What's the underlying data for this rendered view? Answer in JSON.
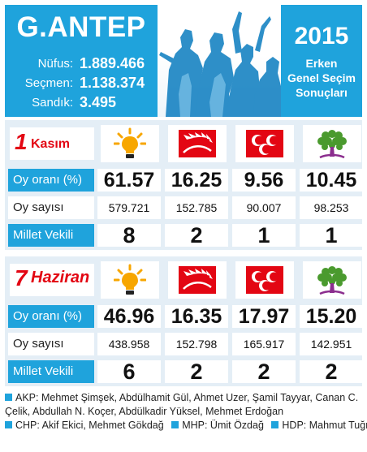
{
  "header": {
    "city": "G.ANTEP",
    "stats": [
      {
        "label": "Nüfus:",
        "value": "1.889.466"
      },
      {
        "label": "Seçmen:",
        "value": "1.138.374"
      },
      {
        "label": "Sandık:",
        "value": "3.495"
      }
    ],
    "year": "2015",
    "election_lines": [
      "Erken",
      "Genel Seçim",
      "Sonuçları"
    ]
  },
  "row_labels": {
    "vote_rate": "Oy oranı (%)",
    "vote_count": "Oy sayısı",
    "mp": "Millet Vekili"
  },
  "parties": [
    {
      "icon": "akp-bulb-icon",
      "color": "#f7a600"
    },
    {
      "icon": "chp-arrows-icon",
      "color": "#e30613"
    },
    {
      "icon": "mhp-crescents-icon",
      "color": "#e30613"
    },
    {
      "icon": "hdp-tree-icon",
      "color": "#4a9a2e"
    }
  ],
  "elections": [
    {
      "date_num": "1",
      "date_month": "Kasım",
      "vote_rates": [
        "61.57",
        "16.25",
        "9.56",
        "10.45"
      ],
      "vote_counts": [
        "579.721",
        "152.785",
        "90.007",
        "98.253"
      ],
      "mps": [
        "8",
        "2",
        "1",
        "1"
      ]
    },
    {
      "date_num": "7",
      "date_month": "Haziran",
      "vote_rates": [
        "46.96",
        "16.35",
        "17.97",
        "15.20"
      ],
      "vote_counts": [
        "438.958",
        "152.798",
        "165.917",
        "142.951"
      ],
      "mps": [
        "6",
        "2",
        "2",
        "2"
      ]
    }
  ],
  "footer": {
    "akp_line1": "AKP: Mehmet Şimşek, Abdülhamit Gül, Ahmet Uzer, Şamil Tayyar, Canan C.",
    "akp_line2": "Çelik, Abdullah N. Koçer, Abdülkadir Yüksel, Mehmet Erdoğan",
    "chp": "CHP: Akif Ekici, Mehmet Gökdağ",
    "mhp": "MHP: Ümit Özdağ",
    "hdp": "HDP: Mahmut Tuğrul"
  },
  "colors": {
    "accent": "#1fa3dc",
    "panel": "#e4eef6",
    "red": "#e30613"
  }
}
